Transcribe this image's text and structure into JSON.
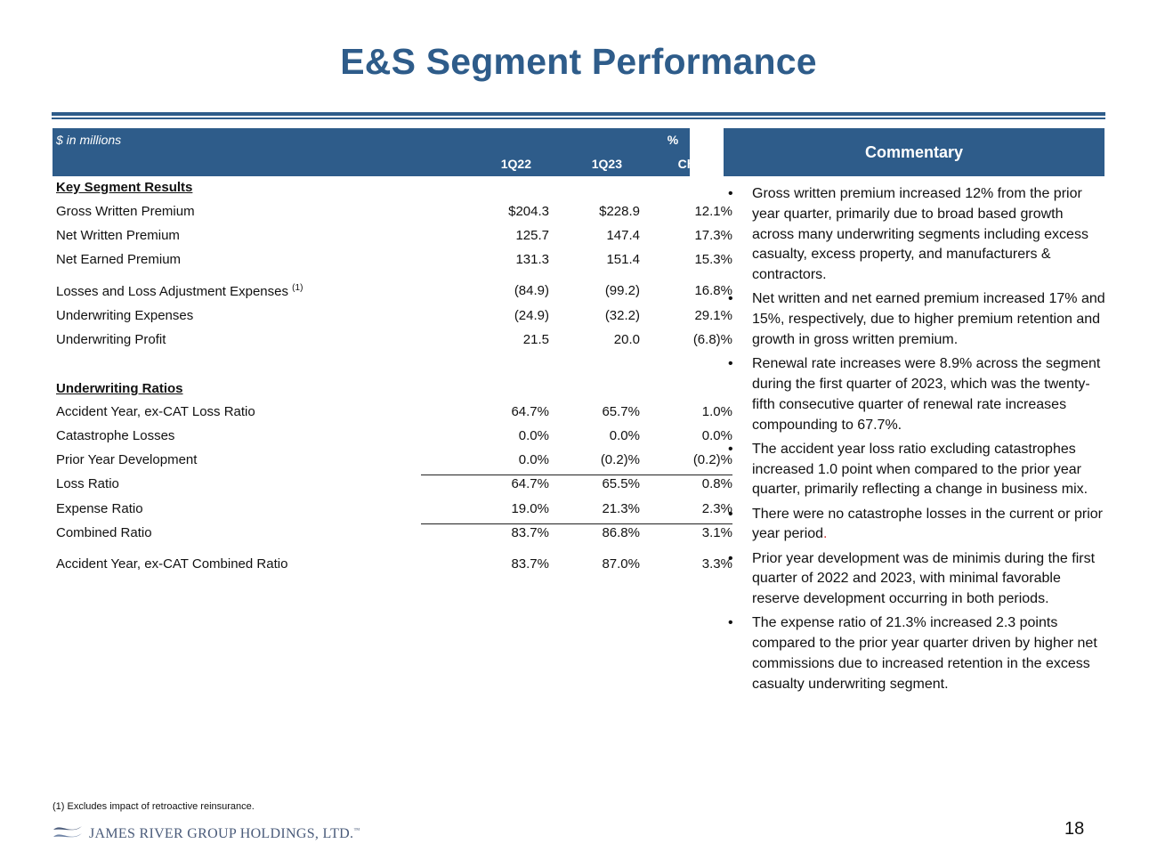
{
  "title": "E&S Segment Performance",
  "table": {
    "unit_label": "$ in millions",
    "pct_label": "%",
    "columns": [
      "1Q22",
      "1Q23",
      "Change"
    ],
    "rows": [
      {
        "label": "Key Segment Results",
        "header": true
      },
      {
        "label": "Gross Written Premium",
        "v1": "$204.3",
        "v2": "$228.9",
        "v3": "12.1%"
      },
      {
        "label": "Net Written Premium",
        "v1": "125.7",
        "v2": "147.4",
        "v3": "17.3%"
      },
      {
        "label": "Net Earned Premium",
        "v1": "131.3",
        "v2": "151.4",
        "v3": "15.3%"
      },
      {
        "label": "Losses and Loss Adjustment Expenses",
        "sup": "(1)",
        "v1": "(84.9)",
        "v2": "(99.2)",
        "v3": "16.8%"
      },
      {
        "label": "Underwriting Expenses",
        "v1": "(24.9)",
        "v2": "(32.2)",
        "v3": "29.1%"
      },
      {
        "label": "Underwriting Profit",
        "v1": "21.5",
        "v2": "20.0",
        "v3": "(6.8)%"
      },
      {
        "label": "Underwriting Ratios",
        "header": true
      },
      {
        "label": "Accident Year, ex-CAT Loss Ratio",
        "v1": "64.7%",
        "v2": "65.7%",
        "v3": "1.0%"
      },
      {
        "label": "Catastrophe Losses",
        "v1": "0.0%",
        "v2": "0.0%",
        "v3": "0.0%"
      },
      {
        "label": "Prior Year Development",
        "v1": "0.0%",
        "v2": "(0.2)%",
        "v3": "(0.2)%"
      },
      {
        "label": "Loss Ratio",
        "v1": "64.7%",
        "v2": "65.5%",
        "v3": "0.8%"
      },
      {
        "label": "Expense Ratio",
        "v1": "19.0%",
        "v2": "21.3%",
        "v3": "2.3%"
      },
      {
        "label": "Combined Ratio",
        "v1": "83.7%",
        "v2": "86.8%",
        "v3": "3.1%"
      },
      {
        "label": "Accident Year, ex-CAT Combined Ratio",
        "v1": "83.7%",
        "v2": "87.0%",
        "v3": "3.3%"
      }
    ]
  },
  "commentary": {
    "title": "Commentary",
    "bullet_char": "•",
    "bullets": [
      "Gross written premium increased 12% from the prior year quarter, primarily due to broad based growth across many underwriting segments including excess casualty, excess property, and manufacturers & contractors.",
      "Net written and net earned premium increased 17% and 15%, respectively, due to higher premium retention and growth in gross written premium.",
      "Renewal rate increases were 8.9% across the segment during the first quarter of 2023, which was the twenty-fifth consecutive quarter of renewal rate increases compounding to 67.7%.",
      "The accident year loss ratio excluding catastrophes increased 1.0 point when compared to the prior year quarter, primarily reflecting a change in business mix.",
      "There were no catastrophe losses in the current or prior year period",
      "Prior year development was de minimis during the first quarter of 2022 and 2023, with minimal favorable reserve development occurring in both periods.",
      "The expense ratio of 21.3% increased 2.3 points compared to the prior year quarter driven by higher net commissions due to increased retention in the excess casualty underwriting segment."
    ],
    "period_mark": "."
  },
  "footnote": "(1)   Excludes impact of retroactive reinsurance.",
  "logo_text": "JAMES RIVER GROUP HOLDINGS, LTD.",
  "logo_tm": "™",
  "page_number": "18"
}
